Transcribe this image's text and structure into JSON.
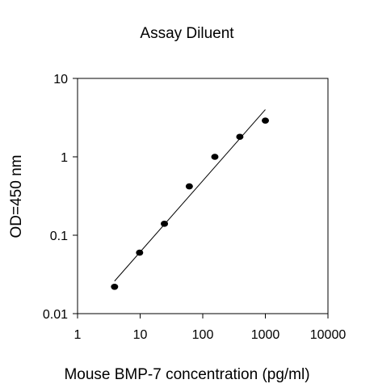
{
  "chart_data": {
    "type": "scatter",
    "title": "Assay Diluent",
    "xlabel": "Mouse BMP-7 concentration (pg/ml)",
    "ylabel": "OD=450 nm",
    "x_scale": "log",
    "y_scale": "log",
    "xlim": [
      1,
      10000
    ],
    "ylim": [
      0.01,
      10
    ],
    "x_ticks": [
      1,
      10,
      100,
      1000,
      10000
    ],
    "x_tick_labels": [
      "1",
      "10",
      "100",
      "1000",
      "10000"
    ],
    "y_ticks": [
      0.01,
      0.1,
      1,
      10
    ],
    "y_tick_labels": [
      "0.01",
      "0.1",
      "1",
      "10"
    ],
    "grid": false,
    "series": [
      {
        "points": [
          {
            "x": 3.9,
            "y": 0.022
          },
          {
            "x": 9.8,
            "y": 0.06
          },
          {
            "x": 24.4,
            "y": 0.14
          },
          {
            "x": 61,
            "y": 0.42
          },
          {
            "x": 156,
            "y": 1.0
          },
          {
            "x": 391,
            "y": 1.8
          },
          {
            "x": 1000,
            "y": 2.9
          }
        ],
        "color": "#000000"
      }
    ],
    "fit_line": {
      "type": "linear-log-log",
      "x": [
        3.9,
        1000
      ],
      "y": [
        0.026,
        4.0
      ],
      "color": "#000000"
    }
  }
}
